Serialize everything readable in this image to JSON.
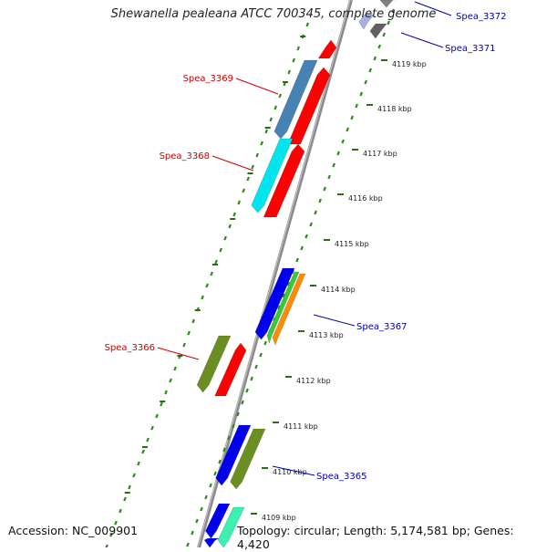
{
  "title": "Shewanella pealeana ATCC 700345, complete genome",
  "accession": "Accession: NC_009901",
  "topology": "Topology: circular; Length: 5,174,581 bp; Genes: 4,420",
  "ticks": [
    "4119 kbp",
    "4118 kbp",
    "4117 kbp",
    "4116 kbp",
    "4115 kbp",
    "4114 kbp",
    "4113 kbp",
    "4112 kbp",
    "4111 kbp",
    "4110 kbp",
    "4109 kbp"
  ],
  "gene_labels": [
    {
      "text": "Spea_3372",
      "color": "#0000aa"
    },
    {
      "text": "Spea_3371",
      "color": "#0000aa"
    },
    {
      "text": "Spea_3369",
      "color": "#cc0000"
    },
    {
      "text": "Spea_3368",
      "color": "#cc0000"
    },
    {
      "text": "Spea_3367",
      "color": "#0000aa"
    },
    {
      "text": "Spea_3366",
      "color": "#cc0000"
    },
    {
      "text": "Spea_3365",
      "color": "#0000aa"
    }
  ],
  "colors": {
    "backbone": "#8a8a8a",
    "tick_marks": "#2a8a1a",
    "red": "#ff0000",
    "steelblue": "#4682b4",
    "cyan": "#00e5ee",
    "blue": "#0000ee",
    "green": "#32cd32",
    "orange": "#ff8c00",
    "olive": "#6b8e23",
    "aquamarine": "#3cf0b0",
    "gray": "#808080"
  }
}
